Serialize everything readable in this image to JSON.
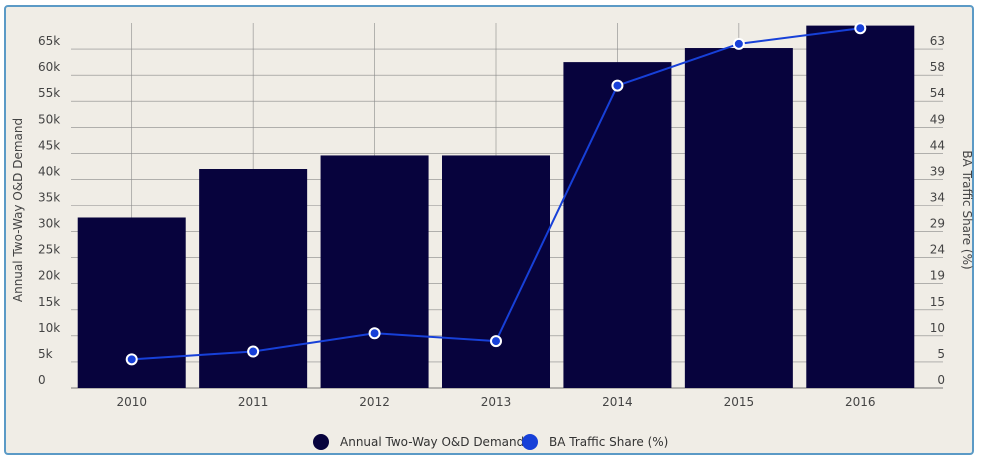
{
  "chart_data": {
    "type": "bar",
    "categories": [
      "2010",
      "2011",
      "2012",
      "2013",
      "2014",
      "2015",
      "2016"
    ],
    "series": [
      {
        "name": "Annual Two-Way O&D Demand",
        "type": "bar",
        "axis": "left",
        "color": "#07033d",
        "values": [
          32700,
          42000,
          44600,
          44600,
          62500,
          65200,
          69500
        ]
      },
      {
        "name": "BA Traffic Share (%)",
        "type": "line",
        "axis": "right",
        "color": "#1740d8",
        "values": [
          5.5,
          7,
          10.5,
          9,
          58,
          66,
          69
        ]
      }
    ],
    "ylabel": "Annual Two-Way O&D Demand",
    "y2label": "BA Traffic Share (%)",
    "ylim": [
      0,
      70000
    ],
    "y2lim": [
      0,
      70
    ],
    "yticks": [
      "0",
      "5k",
      "10k",
      "15k",
      "20k",
      "25k",
      "30k",
      "35k",
      "40k",
      "45k",
      "50k",
      "55k",
      "60k",
      "65k"
    ],
    "y2ticks": [
      "0",
      "5",
      "10",
      "15",
      "19",
      "24",
      "29",
      "34",
      "39",
      "44",
      "49",
      "54",
      "58",
      "63"
    ],
    "grid": true,
    "legend": "bottom-center"
  }
}
